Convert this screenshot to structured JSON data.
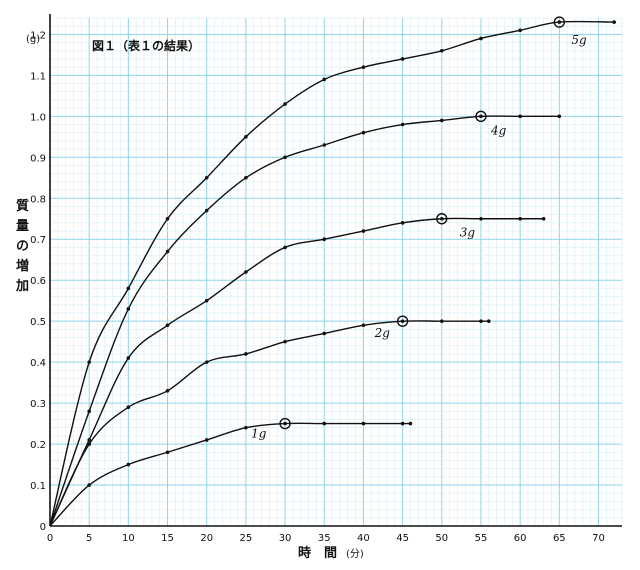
{
  "chart_data": {
    "type": "line",
    "title": "図１（表１の結果）",
    "ylabel": "質量の増加",
    "yunit": "(g)",
    "xlabel": "時　間",
    "xunit": "(分)",
    "xlim": [
      0,
      73
    ],
    "ylim": [
      0,
      1.24
    ],
    "xticks": [
      "0",
      "5",
      "10",
      "15",
      "20",
      "25",
      "30",
      "35",
      "40",
      "45",
      "50",
      "55",
      "60",
      "65",
      "70"
    ],
    "yticks": [
      "0",
      "0.1",
      "0.2",
      "0.3",
      "0.4",
      "0.5",
      "0.6",
      "0.7",
      "0.8",
      "0.9",
      "1.0",
      "1.1",
      "1.2"
    ],
    "grid": true,
    "series": [
      {
        "name": "5g",
        "x": [
          0,
          5,
          10,
          15,
          20,
          25,
          30,
          35,
          40,
          45,
          50,
          55,
          60,
          65,
          72
        ],
        "y": [
          0,
          0.4,
          0.58,
          0.75,
          0.85,
          0.95,
          1.03,
          1.09,
          1.12,
          1.14,
          1.16,
          1.19,
          1.21,
          1.23,
          1.23
        ],
        "end_x": 65
      },
      {
        "name": "4g",
        "x": [
          0,
          5,
          10,
          15,
          20,
          25,
          30,
          35,
          40,
          45,
          50,
          55,
          60,
          65
        ],
        "y": [
          0,
          0.28,
          0.53,
          0.67,
          0.77,
          0.85,
          0.9,
          0.93,
          0.96,
          0.98,
          0.99,
          1.0,
          1.0,
          1.0
        ],
        "end_x": 55
      },
      {
        "name": "3g",
        "x": [
          0,
          5,
          10,
          15,
          20,
          25,
          30,
          35,
          40,
          45,
          50,
          55,
          60,
          63
        ],
        "y": [
          0,
          0.21,
          0.41,
          0.49,
          0.55,
          0.62,
          0.68,
          0.7,
          0.72,
          0.74,
          0.75,
          0.75,
          0.75,
          0.75
        ],
        "end_x": 50
      },
      {
        "name": "2g",
        "x": [
          0,
          5,
          10,
          15,
          20,
          25,
          30,
          35,
          40,
          45,
          50,
          55,
          56
        ],
        "y": [
          0,
          0.2,
          0.29,
          0.33,
          0.4,
          0.42,
          0.45,
          0.47,
          0.49,
          0.5,
          0.5,
          0.5,
          0.5
        ],
        "end_x": 45
      },
      {
        "name": "1g",
        "x": [
          0,
          5,
          10,
          15,
          20,
          25,
          30,
          35,
          40,
          45,
          46
        ],
        "y": [
          0,
          0.1,
          0.15,
          0.18,
          0.21,
          0.24,
          0.25,
          0.25,
          0.25,
          0.25,
          0.25
        ],
        "end_x": 30
      }
    ]
  }
}
